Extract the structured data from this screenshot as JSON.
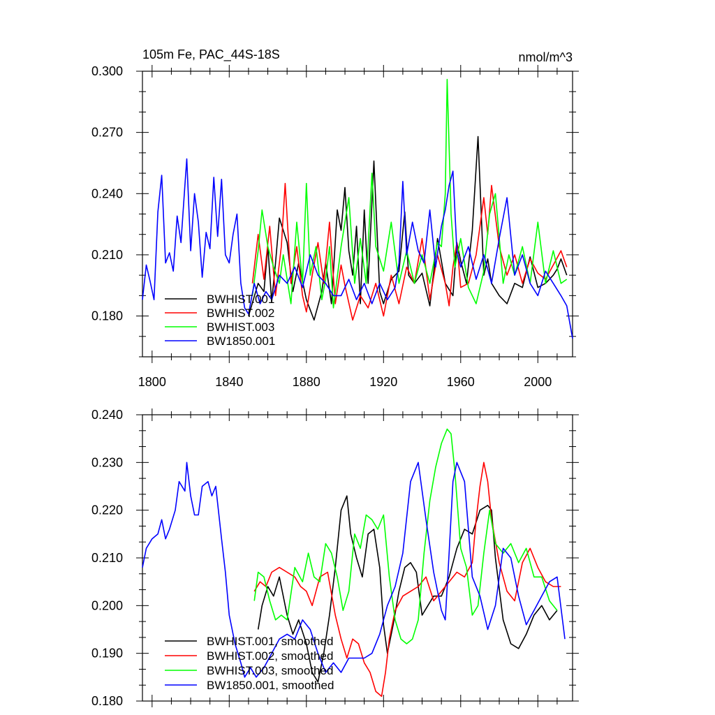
{
  "colors": {
    "BWHIST.001": "#000000",
    "BWHIST.002": "#ff0000",
    "BWHIST.003": "#00ff00",
    "BW1850.001": "#0000ff"
  },
  "chart_data": [
    {
      "type": "line",
      "title": "105m Fe, PAC_44S-18S",
      "units_label": "nmol/m^3",
      "xlim": [
        1795,
        2018
      ],
      "ylim": [
        0.16,
        0.3
      ],
      "xticks": [
        1800,
        1840,
        1880,
        1920,
        1960,
        2000
      ],
      "xtick_labels": [
        "1800",
        "1840",
        "1880",
        "1920",
        "1960",
        "2000"
      ],
      "yticks": [
        0.18,
        0.21,
        0.24,
        0.27,
        0.3
      ],
      "ytick_labels": [
        "0.180",
        "0.210",
        "0.240",
        "0.270",
        "0.300"
      ],
      "grid": false,
      "legend_position": "bottom-left",
      "series": [
        {
          "name": "BWHIST.001",
          "color": "BWHIST.001",
          "x": [
            1850,
            1855,
            1858,
            1860,
            1862,
            1864,
            1866,
            1870,
            1873,
            1876,
            1880,
            1884,
            1888,
            1890,
            1893,
            1896,
            1898,
            1900,
            1902,
            1904,
            1906,
            1908,
            1910,
            1912,
            1915,
            1918,
            1920,
            1924,
            1928,
            1931,
            1933,
            1936,
            1940,
            1944,
            1948,
            1952,
            1956,
            1958,
            1960,
            1963,
            1966,
            1969,
            1972,
            1974,
            1976,
            1980,
            1984,
            1988,
            1992,
            1996,
            2000,
            2004,
            2008,
            2010,
            2012,
            2015
          ],
          "y": [
            0.18,
            0.196,
            0.192,
            0.214,
            0.187,
            0.206,
            0.228,
            0.216,
            0.192,
            0.206,
            0.188,
            0.178,
            0.192,
            0.206,
            0.186,
            0.232,
            0.222,
            0.243,
            0.212,
            0.2,
            0.224,
            0.186,
            0.232,
            0.196,
            0.256,
            0.192,
            0.186,
            0.198,
            0.202,
            0.231,
            0.2,
            0.196,
            0.201,
            0.185,
            0.218,
            0.196,
            0.19,
            0.216,
            0.207,
            0.196,
            0.222,
            0.268,
            0.2,
            0.208,
            0.196,
            0.19,
            0.186,
            0.196,
            0.194,
            0.209,
            0.194,
            0.196,
            0.2,
            0.203,
            0.208,
            0.2
          ]
        },
        {
          "name": "BWHIST.002",
          "color": "BWHIST.002",
          "x": [
            1852,
            1855,
            1858,
            1861,
            1864,
            1867,
            1869,
            1872,
            1875,
            1878,
            1880,
            1883,
            1886,
            1889,
            1892,
            1895,
            1898,
            1900,
            1904,
            1908,
            1912,
            1916,
            1920,
            1924,
            1928,
            1932,
            1936,
            1940,
            1944,
            1948,
            1952,
            1954,
            1956,
            1958,
            1960,
            1964,
            1968,
            1972,
            1974,
            1976,
            1980,
            1984,
            1988,
            1992,
            1996,
            2000,
            2004,
            2008,
            2012,
            2015
          ],
          "y": [
            0.196,
            0.22,
            0.198,
            0.224,
            0.19,
            0.214,
            0.245,
            0.196,
            0.214,
            0.19,
            0.182,
            0.2,
            0.216,
            0.196,
            0.226,
            0.186,
            0.205,
            0.195,
            0.178,
            0.19,
            0.184,
            0.196,
            0.18,
            0.2,
            0.186,
            0.204,
            0.196,
            0.218,
            0.188,
            0.21,
            0.196,
            0.185,
            0.204,
            0.216,
            0.194,
            0.196,
            0.21,
            0.238,
            0.22,
            0.244,
            0.214,
            0.2,
            0.21,
            0.196,
            0.208,
            0.201,
            0.198,
            0.205,
            0.212,
            0.204
          ]
        },
        {
          "name": "BWHIST.003",
          "color": "BWHIST.003",
          "x": [
            1852,
            1855,
            1857,
            1860,
            1863,
            1866,
            1868,
            1872,
            1875,
            1878,
            1880,
            1882,
            1885,
            1888,
            1890,
            1892,
            1894,
            1898,
            1902,
            1905,
            1908,
            1911,
            1914,
            1916,
            1920,
            1924,
            1928,
            1932,
            1936,
            1940,
            1944,
            1948,
            1950,
            1952,
            1953,
            1955,
            1957,
            1960,
            1964,
            1968,
            1972,
            1975,
            1978,
            1982,
            1985,
            1988,
            1992,
            1996,
            2000,
            2004,
            2008,
            2012,
            2015
          ],
          "y": [
            0.19,
            0.212,
            0.232,
            0.214,
            0.204,
            0.196,
            0.21,
            0.186,
            0.226,
            0.196,
            0.245,
            0.2,
            0.214,
            0.188,
            0.198,
            0.214,
            0.184,
            0.214,
            0.238,
            0.196,
            0.218,
            0.196,
            0.25,
            0.214,
            0.202,
            0.226,
            0.196,
            0.212,
            0.196,
            0.21,
            0.196,
            0.216,
            0.214,
            0.24,
            0.296,
            0.23,
            0.204,
            0.218,
            0.194,
            0.186,
            0.202,
            0.23,
            0.24,
            0.196,
            0.21,
            0.2,
            0.214,
            0.196,
            0.226,
            0.196,
            0.212,
            0.196,
            0.198
          ]
        },
        {
          "name": "BW1850.001",
          "color": "BW1850.001",
          "x": [
            1795,
            1797,
            1799,
            1801,
            1803,
            1805,
            1807,
            1809,
            1811,
            1813,
            1815,
            1817,
            1818,
            1820,
            1822,
            1824,
            1826,
            1828,
            1830,
            1832,
            1834,
            1836,
            1838,
            1840,
            1842,
            1844,
            1846,
            1848,
            1850,
            1853,
            1856,
            1859,
            1862,
            1866,
            1870,
            1874,
            1878,
            1882,
            1886,
            1890,
            1894,
            1898,
            1902,
            1906,
            1910,
            1914,
            1918,
            1922,
            1926,
            1928,
            1930,
            1932,
            1935,
            1938,
            1941,
            1944,
            1947,
            1950,
            1952,
            1954,
            1956,
            1958,
            1960,
            1964,
            1968,
            1972,
            1976,
            1980,
            1984,
            1988,
            1992,
            1996,
            2000,
            2004,
            2008,
            2012,
            2015,
            2018
          ],
          "y": [
            0.188,
            0.205,
            0.197,
            0.188,
            0.231,
            0.249,
            0.206,
            0.211,
            0.202,
            0.229,
            0.216,
            0.244,
            0.257,
            0.212,
            0.24,
            0.226,
            0.199,
            0.221,
            0.213,
            0.248,
            0.219,
            0.247,
            0.21,
            0.206,
            0.22,
            0.23,
            0.196,
            0.184,
            0.181,
            0.196,
            0.186,
            0.192,
            0.188,
            0.2,
            0.196,
            0.204,
            0.194,
            0.21,
            0.2,
            0.196,
            0.19,
            0.19,
            0.198,
            0.188,
            0.196,
            0.186,
            0.196,
            0.188,
            0.194,
            0.206,
            0.246,
            0.21,
            0.226,
            0.212,
            0.206,
            0.232,
            0.204,
            0.224,
            0.232,
            0.244,
            0.251,
            0.212,
            0.204,
            0.214,
            0.198,
            0.21,
            0.196,
            0.218,
            0.238,
            0.2,
            0.21,
            0.196,
            0.19,
            0.202,
            0.196,
            0.19,
            0.185,
            0.169
          ]
        }
      ]
    },
    {
      "type": "line",
      "xlim": [
        1795,
        2018
      ],
      "ylim": [
        0.18,
        0.24
      ],
      "xticks": [
        1800,
        1840,
        1880,
        1920,
        1960,
        2000
      ],
      "yticks": [
        0.18,
        0.19,
        0.2,
        0.21,
        0.22,
        0.23,
        0.24
      ],
      "ytick_labels": [
        "0.180",
        "0.190",
        "0.200",
        "0.210",
        "0.220",
        "0.230",
        "0.240"
      ],
      "grid": false,
      "legend_position": "bottom-left",
      "series": [
        {
          "name": "BWHIST.001, smoothed",
          "color": "BWHIST.001",
          "x": [
            1855,
            1857,
            1860,
            1863,
            1866,
            1870,
            1873,
            1876,
            1880,
            1883,
            1886,
            1889,
            1892,
            1895,
            1898,
            1901,
            1903,
            1906,
            1909,
            1912,
            1915,
            1918,
            1920,
            1922,
            1925,
            1928,
            1931,
            1934,
            1937,
            1940,
            1943,
            1946,
            1950,
            1954,
            1958,
            1962,
            1966,
            1970,
            1974,
            1976,
            1978,
            1982,
            1986,
            1990,
            1994,
            1998,
            2002,
            2006,
            2010
          ],
          "y": [
            0.195,
            0.2,
            0.204,
            0.202,
            0.206,
            0.198,
            0.194,
            0.197,
            0.192,
            0.186,
            0.184,
            0.19,
            0.198,
            0.208,
            0.22,
            0.223,
            0.215,
            0.21,
            0.206,
            0.215,
            0.216,
            0.208,
            0.196,
            0.19,
            0.196,
            0.203,
            0.208,
            0.209,
            0.207,
            0.198,
            0.2,
            0.202,
            0.202,
            0.206,
            0.212,
            0.216,
            0.215,
            0.22,
            0.221,
            0.22,
            0.21,
            0.197,
            0.192,
            0.191,
            0.194,
            0.198,
            0.2,
            0.197,
            0.199
          ]
        },
        {
          "name": "BWHIST.002, smoothed",
          "color": "BWHIST.002",
          "x": [
            1853,
            1856,
            1859,
            1862,
            1866,
            1870,
            1874,
            1877,
            1880,
            1883,
            1887,
            1891,
            1895,
            1898,
            1901,
            1904,
            1907,
            1910,
            1913,
            1916,
            1919,
            1921,
            1923,
            1926,
            1930,
            1934,
            1938,
            1942,
            1946,
            1950,
            1954,
            1958,
            1962,
            1966,
            1968,
            1970,
            1972,
            1974,
            1976,
            1980,
            1984,
            1988,
            1992,
            1996,
            2000,
            2004,
            2008,
            2012
          ],
          "y": [
            0.203,
            0.205,
            0.204,
            0.207,
            0.208,
            0.207,
            0.206,
            0.204,
            0.203,
            0.2,
            0.206,
            0.207,
            0.198,
            0.193,
            0.189,
            0.193,
            0.192,
            0.188,
            0.186,
            0.182,
            0.181,
            0.186,
            0.193,
            0.199,
            0.202,
            0.203,
            0.204,
            0.206,
            0.201,
            0.203,
            0.205,
            0.207,
            0.206,
            0.209,
            0.218,
            0.225,
            0.23,
            0.226,
            0.218,
            0.209,
            0.203,
            0.201,
            0.209,
            0.212,
            0.208,
            0.205,
            0.204,
            0.204
          ]
        },
        {
          "name": "BWHIST.003, smoothed",
          "color": "BWHIST.003",
          "x": [
            1853,
            1855,
            1858,
            1861,
            1864,
            1867,
            1870,
            1874,
            1878,
            1881,
            1884,
            1887,
            1890,
            1893,
            1896,
            1899,
            1902,
            1905,
            1908,
            1911,
            1914,
            1917,
            1920,
            1923,
            1926,
            1929,
            1932,
            1935,
            1938,
            1941,
            1944,
            1947,
            1950,
            1953,
            1955,
            1957,
            1960,
            1963,
            1966,
            1969,
            1972,
            1975,
            1978,
            1982,
            1986,
            1990,
            1994,
            1998,
            2002,
            2006,
            2010
          ],
          "y": [
            0.201,
            0.207,
            0.206,
            0.201,
            0.197,
            0.198,
            0.197,
            0.208,
            0.205,
            0.211,
            0.206,
            0.205,
            0.213,
            0.211,
            0.206,
            0.199,
            0.203,
            0.215,
            0.212,
            0.219,
            0.218,
            0.216,
            0.219,
            0.206,
            0.197,
            0.193,
            0.192,
            0.193,
            0.197,
            0.211,
            0.222,
            0.229,
            0.234,
            0.237,
            0.236,
            0.228,
            0.212,
            0.208,
            0.198,
            0.2,
            0.211,
            0.22,
            0.213,
            0.211,
            0.213,
            0.209,
            0.212,
            0.206,
            0.206,
            0.201,
            0.199
          ]
        },
        {
          "name": "BW1850.001, smoothed",
          "color": "BW1850.001",
          "x": [
            1795,
            1797,
            1800,
            1803,
            1805,
            1807,
            1809,
            1812,
            1814,
            1817,
            1818,
            1820,
            1822,
            1824,
            1826,
            1829,
            1831,
            1833,
            1836,
            1838,
            1840,
            1843,
            1846,
            1848,
            1851,
            1854,
            1858,
            1862,
            1866,
            1870,
            1874,
            1878,
            1882,
            1886,
            1890,
            1894,
            1898,
            1902,
            1906,
            1910,
            1914,
            1918,
            1922,
            1926,
            1930,
            1934,
            1938,
            1942,
            1946,
            1950,
            1952,
            1954,
            1956,
            1958,
            1962,
            1966,
            1970,
            1974,
            1978,
            1982,
            1986,
            1990,
            1994,
            1998,
            2002,
            2006,
            2010,
            2014
          ],
          "y": [
            0.208,
            0.212,
            0.214,
            0.215,
            0.218,
            0.214,
            0.216,
            0.22,
            0.226,
            0.224,
            0.23,
            0.223,
            0.219,
            0.219,
            0.225,
            0.226,
            0.223,
            0.225,
            0.214,
            0.207,
            0.198,
            0.192,
            0.188,
            0.185,
            0.187,
            0.185,
            0.187,
            0.19,
            0.193,
            0.194,
            0.193,
            0.197,
            0.195,
            0.19,
            0.186,
            0.188,
            0.186,
            0.189,
            0.189,
            0.189,
            0.19,
            0.194,
            0.2,
            0.204,
            0.211,
            0.226,
            0.23,
            0.218,
            0.207,
            0.199,
            0.197,
            0.211,
            0.226,
            0.23,
            0.226,
            0.206,
            0.202,
            0.195,
            0.2,
            0.212,
            0.21,
            0.202,
            0.196,
            0.199,
            0.202,
            0.205,
            0.206,
            0.193
          ]
        }
      ]
    }
  ]
}
